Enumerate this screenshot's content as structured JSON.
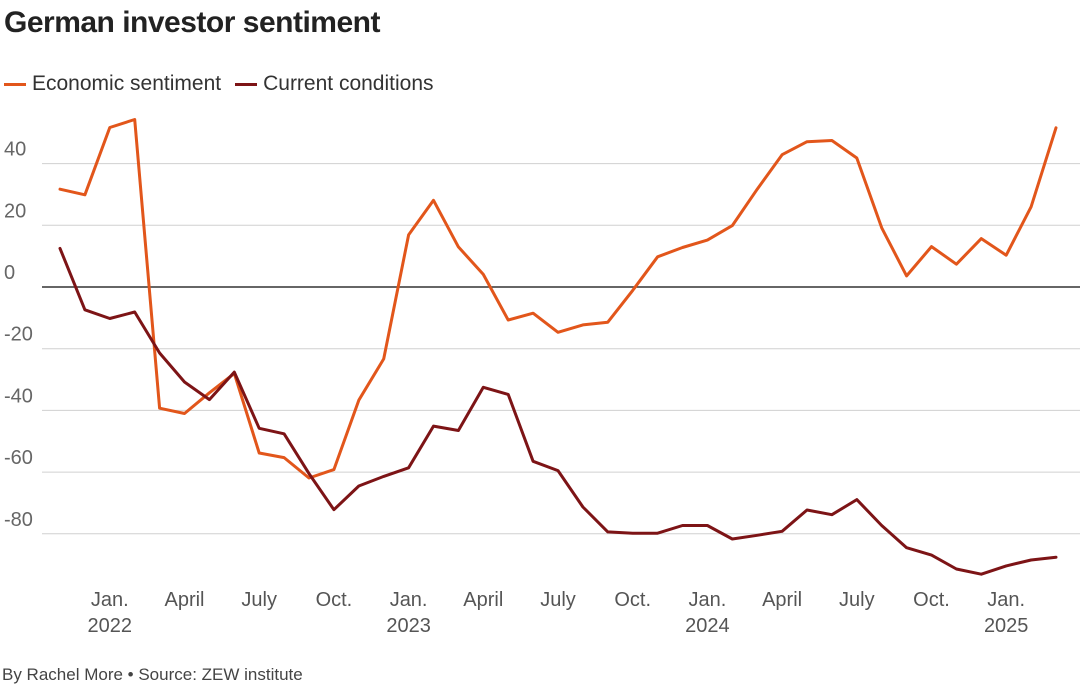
{
  "colors": {
    "economic": "#e2561b",
    "current": "#7d1416",
    "grid": "#d0d0d0",
    "zero": "#333333",
    "tick": "#666666"
  },
  "chart_data": {
    "type": "line",
    "title": "German investor sentiment",
    "footer": "By Rachel More • Source: ZEW institute",
    "ylim": [
      -100,
      55
    ],
    "yticks": [
      40,
      20,
      0,
      -20,
      -40,
      -60,
      -80
    ],
    "grid": true,
    "legend_position": "top-left",
    "x_start": "2021-11",
    "x_ticks": [
      {
        "label": "Jan.",
        "year": "2022",
        "x": "2022-01"
      },
      {
        "label": "April",
        "year": "",
        "x": "2022-04"
      },
      {
        "label": "July",
        "year": "",
        "x": "2022-07"
      },
      {
        "label": "Oct.",
        "year": "",
        "x": "2022-10"
      },
      {
        "label": "Jan.",
        "year": "2023",
        "x": "2023-01"
      },
      {
        "label": "April",
        "year": "",
        "x": "2023-04"
      },
      {
        "label": "July",
        "year": "",
        "x": "2023-07"
      },
      {
        "label": "Oct.",
        "year": "",
        "x": "2023-10"
      },
      {
        "label": "Jan.",
        "year": "2024",
        "x": "2024-01"
      },
      {
        "label": "April",
        "year": "",
        "x": "2024-04"
      },
      {
        "label": "July",
        "year": "",
        "x": "2024-07"
      },
      {
        "label": "Oct.",
        "year": "",
        "x": "2024-10"
      },
      {
        "label": "Jan.",
        "year": "2025",
        "x": "2025-01"
      }
    ],
    "series": [
      {
        "name": "Economic sentiment",
        "color": "#e2561b",
        "values": [
          31.7,
          29.9,
          51.7,
          54.3,
          -39.3,
          -41.0,
          -34.3,
          -28.0,
          -53.8,
          -55.3,
          -61.9,
          -59.2,
          -36.7,
          -23.3,
          16.9,
          28.1,
          13.0,
          4.1,
          -10.7,
          -8.5,
          -14.7,
          -12.3,
          -11.4,
          -1.1,
          9.8,
          12.8,
          15.2,
          19.9,
          31.7,
          42.9,
          47.1,
          47.5,
          41.8,
          19.2,
          3.6,
          13.1,
          7.4,
          15.7,
          10.3,
          26.0,
          51.6
        ]
      },
      {
        "name": "Current conditions",
        "color": "#7d1416",
        "values": [
          12.5,
          -7.4,
          -10.2,
          -8.1,
          -21.4,
          -30.8,
          -36.5,
          -27.6,
          -45.8,
          -47.6,
          -60.5,
          -72.2,
          -64.5,
          -61.4,
          -58.6,
          -45.1,
          -46.5,
          -32.5,
          -34.8,
          -56.5,
          -59.5,
          -71.3,
          -79.4,
          -79.8,
          -79.8,
          -77.3,
          -77.3,
          -81.7,
          -80.5,
          -79.2,
          -72.3,
          -73.8,
          -68.9,
          -77.3,
          -84.5,
          -86.9,
          -91.4,
          -93.1,
          -90.4,
          -88.5,
          -87.6
        ]
      }
    ]
  }
}
